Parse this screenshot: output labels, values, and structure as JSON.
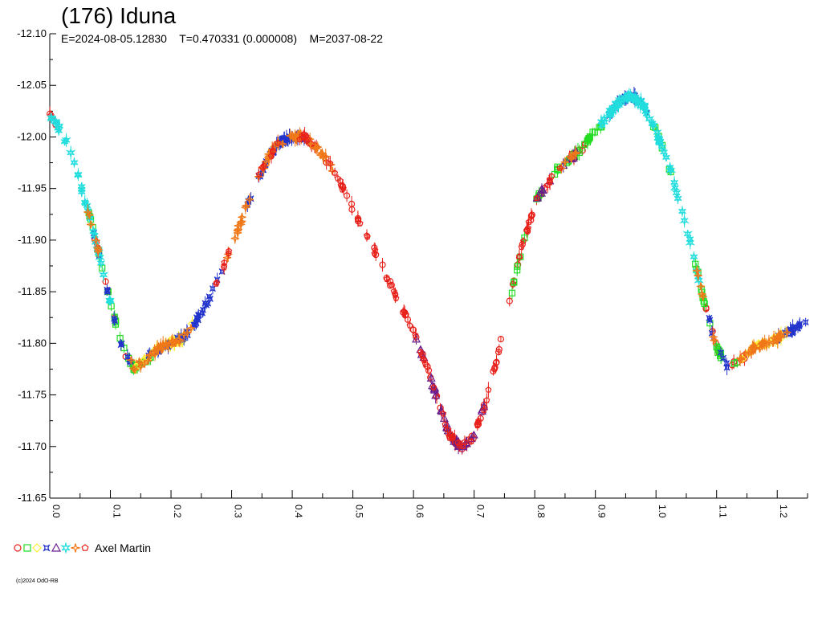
{
  "header": {
    "title": "(176) Iduna",
    "subtitle": "E=2024-08-05.12830    T=0.470331 (0.000008)    M=2037-08-22"
  },
  "legend": {
    "observer": "Axel Martin",
    "markers": [
      {
        "shape": "circle",
        "color": "#e8201a"
      },
      {
        "shape": "square",
        "color": "#22dd22"
      },
      {
        "shape": "diamond",
        "color": "#ffee33"
      },
      {
        "shape": "cross",
        "color": "#2233cc"
      },
      {
        "shape": "triangle",
        "color": "#6a1f8c"
      },
      {
        "shape": "star",
        "color": "#22dddd"
      },
      {
        "shape": "diamond-star",
        "color": "#f07818"
      },
      {
        "shape": "pentagon",
        "color": "#e8201a"
      }
    ]
  },
  "footer": {
    "copyright": "(c)2024 OdO-RB"
  },
  "chart_data": {
    "type": "scatter",
    "xlabel": "",
    "ylabel": "",
    "xlim": [
      0.0,
      1.25
    ],
    "ylim": [
      -12.1,
      -11.65
    ],
    "y_inverted": true,
    "x_ticks": [
      "0.0",
      "0.1",
      "0.2",
      "0.3",
      "0.4",
      "0.5",
      "0.6",
      "0.7",
      "0.8",
      "0.9",
      "1.0",
      "1.1",
      "1.2"
    ],
    "y_ticks": [
      "-12.10",
      "-12.05",
      "-12.00",
      "-11.95",
      "-11.90",
      "-11.85",
      "-11.80",
      "-11.75",
      "-11.70",
      "-11.65"
    ],
    "curve": {
      "x": [
        0.0,
        0.02,
        0.04,
        0.06,
        0.08,
        0.1,
        0.12,
        0.14,
        0.16,
        0.18,
        0.2,
        0.22,
        0.24,
        0.26,
        0.28,
        0.3,
        0.32,
        0.34,
        0.36,
        0.38,
        0.4,
        0.42,
        0.44,
        0.46,
        0.48,
        0.5,
        0.52,
        0.54,
        0.56,
        0.58,
        0.6,
        0.62,
        0.64,
        0.66,
        0.68,
        0.7,
        0.72,
        0.74,
        0.76,
        0.78,
        0.8,
        0.82,
        0.84,
        0.86,
        0.88,
        0.9,
        0.92,
        0.94,
        0.96,
        0.98,
        1.0,
        1.02,
        1.04,
        1.06,
        1.08,
        1.1,
        1.12,
        1.14,
        1.16,
        1.18,
        1.2,
        1.22,
        1.24
      ],
      "y": [
        -12.02,
        -12.005,
        -11.975,
        -11.935,
        -11.89,
        -11.84,
        -11.795,
        -11.775,
        -11.785,
        -11.795,
        -11.8,
        -11.805,
        -11.82,
        -11.84,
        -11.865,
        -11.895,
        -11.925,
        -11.955,
        -11.98,
        -11.995,
        -12.0,
        -12.0,
        -11.99,
        -11.975,
        -11.955,
        -11.93,
        -11.905,
        -11.885,
        -11.86,
        -11.835,
        -11.81,
        -11.78,
        -11.745,
        -11.71,
        -11.7,
        -11.71,
        -11.745,
        -11.79,
        -11.845,
        -11.895,
        -11.935,
        -11.955,
        -11.97,
        -11.98,
        -11.99,
        -12.005,
        -12.02,
        -12.035,
        -12.04,
        -12.03,
        -12.005,
        -11.975,
        -11.935,
        -11.89,
        -11.84,
        -11.795,
        -11.775,
        -11.785,
        -11.795,
        -11.8,
        -11.805,
        -11.81,
        -11.82
      ]
    },
    "series": [
      {
        "marker": "circle",
        "color": "#e8201a",
        "x": [
          0.0,
          0.09,
          0.14,
          0.44,
          0.5,
          0.55,
          0.6,
          0.63,
          0.67,
          0.69,
          0.72,
          0.75,
          0.78,
          0.8,
          0.87,
          1.1,
          1.14
        ]
      },
      {
        "marker": "square",
        "color": "#22dd22",
        "x": [
          0.08,
          0.11,
          0.13,
          0.15,
          0.78,
          0.82,
          0.85,
          0.88,
          0.9,
          1.01,
          1.07,
          1.09,
          1.12
        ]
      },
      {
        "marker": "diamond",
        "color": "#ffee33",
        "x": [
          0.16,
          0.19,
          0.21,
          0.22,
          1.16,
          1.18,
          1.2
        ]
      },
      {
        "marker": "cross",
        "color": "#2233cc",
        "x": [
          0.09,
          0.12,
          0.18,
          0.21,
          0.23,
          0.25,
          0.27,
          0.34,
          0.36,
          0.38,
          0.39,
          0.4,
          0.41,
          0.94,
          0.95,
          0.96,
          0.98,
          1.1,
          1.21,
          1.23,
          1.24
        ]
      },
      {
        "marker": "triangle",
        "color": "#6a1f8c",
        "x": [
          0.62,
          0.64,
          0.66,
          0.68,
          0.7,
          0.81,
          0.86
        ]
      },
      {
        "marker": "star",
        "color": "#22dddd",
        "x": [
          0.01,
          0.03,
          0.05,
          0.07,
          0.09,
          0.92,
          0.93,
          0.94,
          0.95,
          0.96,
          0.97,
          0.98,
          0.99,
          1.0,
          1.02,
          1.04,
          1.06
        ]
      },
      {
        "marker": "diamond-star",
        "color": "#f07818",
        "x": [
          0.08,
          0.15,
          0.17,
          0.19,
          0.2,
          0.22,
          0.3,
          0.32,
          0.35,
          0.37,
          0.39,
          0.41,
          0.43,
          0.45,
          0.85,
          1.08,
          1.15,
          1.17,
          1.19,
          1.2
        ]
      },
      {
        "marker": "pentagon",
        "color": "#e8201a",
        "x": [
          0.28,
          0.36,
          0.42,
          0.47,
          0.52,
          0.57,
          0.61,
          0.65,
          0.67,
          0.71,
          0.79,
          0.83
        ]
      }
    ]
  }
}
